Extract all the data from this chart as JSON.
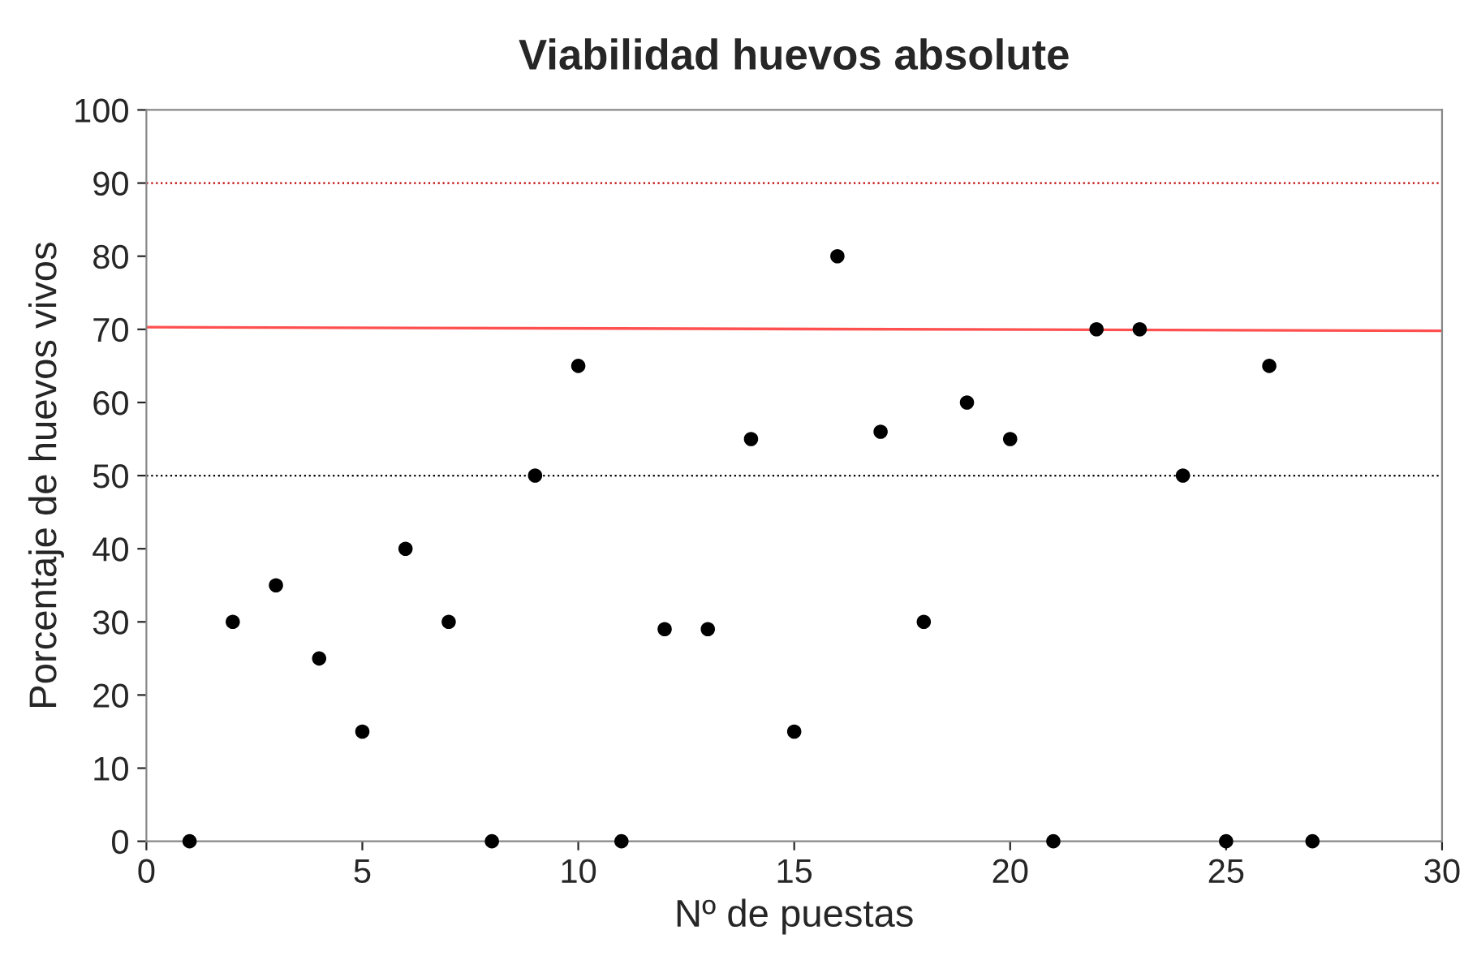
{
  "chart_data": {
    "type": "scatter",
    "title": "Viabilidad huevos absolute",
    "xlabel": "Nº de puestas",
    "ylabel": "Porcentaje de huevos vivos",
    "xlim": [
      0,
      30
    ],
    "xticks": [
      0,
      5,
      10,
      15,
      20,
      25,
      30
    ],
    "ylim": [
      0,
      100
    ],
    "yticks": [
      0,
      10,
      20,
      30,
      40,
      50,
      60,
      70,
      80,
      90,
      100
    ],
    "grid": false,
    "legend": false,
    "series": [
      {
        "marker": "circle",
        "color": "#000000",
        "x": [
          1,
          2,
          3,
          4,
          5,
          6,
          7,
          8,
          9,
          10,
          11,
          12,
          13,
          14,
          15,
          16,
          17,
          18,
          19,
          20,
          21,
          22,
          23,
          24,
          25,
          26,
          27
        ],
        "values": [
          0,
          30,
          35,
          25,
          15,
          40,
          30,
          0,
          50,
          65,
          0,
          29,
          29,
          55,
          15,
          80,
          56,
          30,
          60,
          55,
          0,
          70,
          70,
          50,
          0,
          65,
          0
        ]
      },
      {
        "type": "line",
        "marker": "none",
        "color": "#ff5050",
        "line_style": "solid",
        "x": [
          0,
          30
        ],
        "values": [
          70.3,
          69.8
        ]
      }
    ],
    "ref_lines": [
      {
        "axis": "y",
        "value": 90,
        "label": null,
        "color": "#c00000",
        "line_style": "dotted"
      },
      {
        "axis": "y",
        "value": 50,
        "label": null,
        "color": "#000000",
        "line_style": "dotted"
      }
    ]
  }
}
